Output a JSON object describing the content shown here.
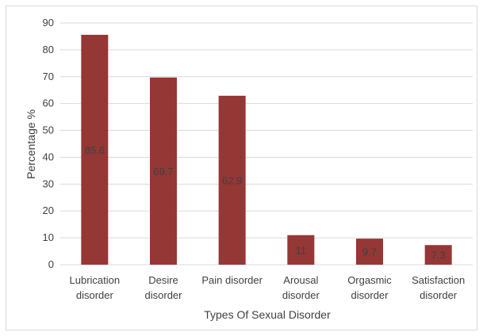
{
  "chart_data": {
    "type": "bar",
    "title": "",
    "xlabel": "Types Of Sexual Disorder",
    "ylabel": "Percentage %",
    "categories": [
      [
        "Lubrication",
        "disorder"
      ],
      [
        "Desire",
        "disorder"
      ],
      [
        "Pain disorder"
      ],
      [
        "Arousal",
        "disorder"
      ],
      [
        "Orgasmic",
        "disorder"
      ],
      [
        "Satisfaction",
        "disorder"
      ]
    ],
    "values": [
      85.6,
      69.7,
      62.9,
      11,
      9.7,
      7.3
    ],
    "data_labels": [
      "85.6",
      "69.7",
      "62.9",
      "11",
      "9.7",
      "7.3"
    ],
    "ylim": [
      0,
      90
    ],
    "yticks": [
      0,
      10,
      20,
      30,
      40,
      50,
      60,
      70,
      80,
      90
    ],
    "grid": true,
    "legend": "none",
    "bar_color": "#953735",
    "grid_color": "#d9d9d9",
    "text_color": "#404040"
  }
}
